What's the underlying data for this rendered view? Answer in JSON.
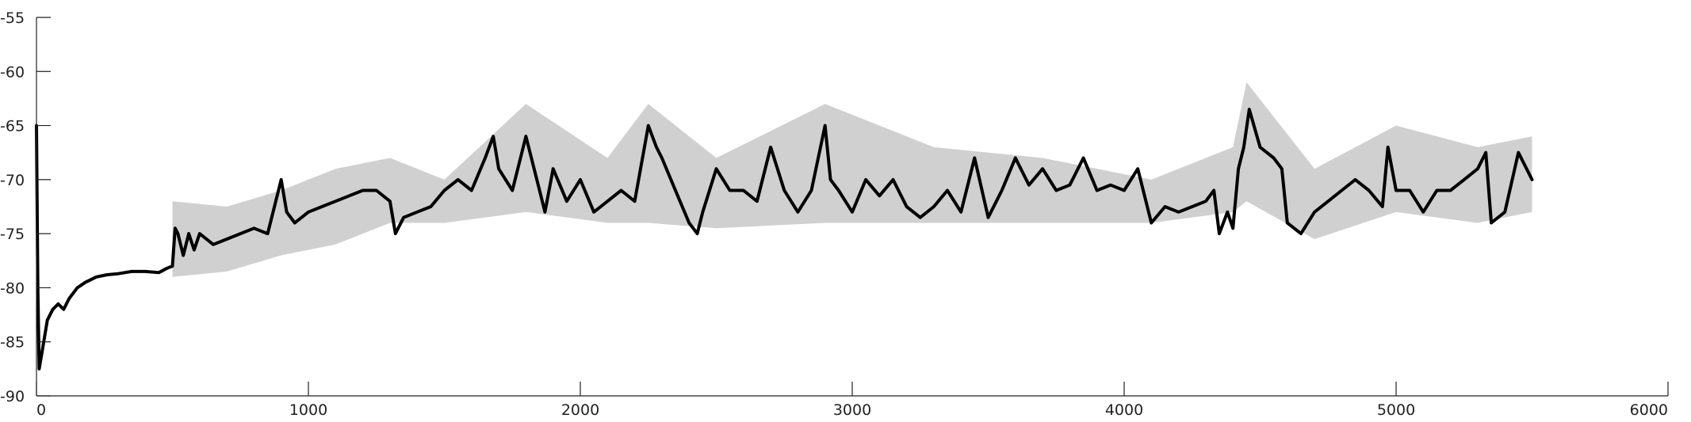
{
  "chart_data": {
    "type": "line",
    "title": "",
    "xlabel": "",
    "ylabel": "",
    "xlim": [
      0,
      6000
    ],
    "ylim": [
      -90,
      -55
    ],
    "xticks": [
      0,
      1000,
      2000,
      3000,
      4000,
      5000,
      6000
    ],
    "yticks": [
      -55,
      -60,
      -65,
      -70,
      -75,
      -80,
      -85,
      -90
    ],
    "xtick_labels": [
      "0",
      "1000",
      "2000",
      "3000",
      "4000",
      "5000",
      "6000"
    ],
    "ytick_labels": [
      "-55",
      "-60",
      "-65",
      "-70",
      "-75",
      "-80",
      "-85",
      "-90"
    ],
    "grid": false,
    "legend": "none",
    "series": [
      {
        "style": "thick black line",
        "color": "#000000",
        "x": [
          0,
          5,
          10,
          20,
          40,
          60,
          80,
          100,
          120,
          150,
          180,
          220,
          260,
          300,
          350,
          400,
          450,
          480,
          500,
          510,
          520,
          540,
          560,
          580,
          600,
          650,
          700,
          750,
          800,
          850,
          900,
          920,
          950,
          1000,
          1050,
          1100,
          1150,
          1200,
          1250,
          1300,
          1320,
          1350,
          1400,
          1450,
          1500,
          1550,
          1600,
          1650,
          1680,
          1700,
          1750,
          1800,
          1850,
          1870,
          1900,
          1950,
          2000,
          2050,
          2100,
          2150,
          2200,
          2250,
          2280,
          2300,
          2350,
          2400,
          2430,
          2450,
          2500,
          2550,
          2600,
          2650,
          2700,
          2750,
          2800,
          2850,
          2900,
          2920,
          2950,
          3000,
          3050,
          3100,
          3150,
          3200,
          3250,
          3300,
          3350,
          3400,
          3450,
          3500,
          3550,
          3600,
          3650,
          3700,
          3750,
          3800,
          3850,
          3900,
          3950,
          4000,
          4050,
          4100,
          4150,
          4200,
          4250,
          4300,
          4330,
          4350,
          4380,
          4400,
          4420,
          4440,
          4460,
          4500,
          4550,
          4580,
          4600,
          4650,
          4700,
          4750,
          4800,
          4850,
          4900,
          4950,
          4970,
          5000,
          5050,
          5100,
          5150,
          5200,
          5250,
          5300,
          5330,
          5350,
          5400,
          5450,
          5500
        ],
        "y": [
          -65,
          -80,
          -87.5,
          -86,
          -83,
          -82,
          -81.5,
          -82,
          -81,
          -80,
          -79.5,
          -79,
          -78.8,
          -78.7,
          -78.5,
          -78.5,
          -78.6,
          -78.2,
          -78,
          -74.5,
          -75,
          -77,
          -75,
          -76.5,
          -75,
          -76,
          -75.5,
          -75,
          -74.5,
          -75,
          -70,
          -73,
          -74,
          -73,
          -72.5,
          -72,
          -71.5,
          -71,
          -71,
          -72,
          -75,
          -73.5,
          -73,
          -72.5,
          -71,
          -70,
          -71,
          -68,
          -66,
          -69,
          -71,
          -66,
          -71,
          -73,
          -69,
          -72,
          -70,
          -73,
          -72,
          -71,
          -72,
          -65,
          -67,
          -68,
          -71,
          -74,
          -75,
          -73,
          -69,
          -71,
          -71,
          -72,
          -67,
          -71,
          -73,
          -71,
          -65,
          -70,
          -71,
          -73,
          -70,
          -71.5,
          -70,
          -72.5,
          -73.5,
          -72.5,
          -71,
          -73,
          -68,
          -73.5,
          -71,
          -68,
          -70.5,
          -69,
          -71,
          -70.5,
          -68,
          -71,
          -70.5,
          -71,
          -69,
          -74,
          -72.5,
          -73,
          -72.5,
          -72,
          -71,
          -75,
          -73,
          -74.5,
          -69,
          -67,
          -63.5,
          -67,
          -68,
          -69,
          -74,
          -75,
          -73,
          -72,
          -71,
          -70,
          -71,
          -72.5,
          -67,
          -71,
          -71,
          -73,
          -71,
          -71,
          -70,
          -69,
          -67.5,
          -74,
          -73,
          -67.5,
          -70
        ]
      },
      {
        "style": "grey noise band",
        "color": "#c0c0c0",
        "x": [
          500,
          700,
          900,
          1100,
          1300,
          1500,
          1800,
          2100,
          2250,
          2500,
          2900,
          3300,
          3700,
          4100,
          4400,
          4450,
          4700,
          5000,
          5300,
          5500
        ],
        "upper": [
          -72,
          -72.5,
          -71,
          -69,
          -68,
          -70,
          -63,
          -68,
          -63,
          -68,
          -63,
          -67,
          -68,
          -70,
          -67,
          -61,
          -69,
          -65,
          -67,
          -66
        ],
        "lower": [
          -79,
          -78.5,
          -77,
          -76,
          -74,
          -74,
          -73,
          -74,
          -74,
          -74.5,
          -74,
          -74,
          -74,
          -74,
          -73,
          -72,
          -75.5,
          -73,
          -74,
          -73
        ]
      }
    ]
  }
}
